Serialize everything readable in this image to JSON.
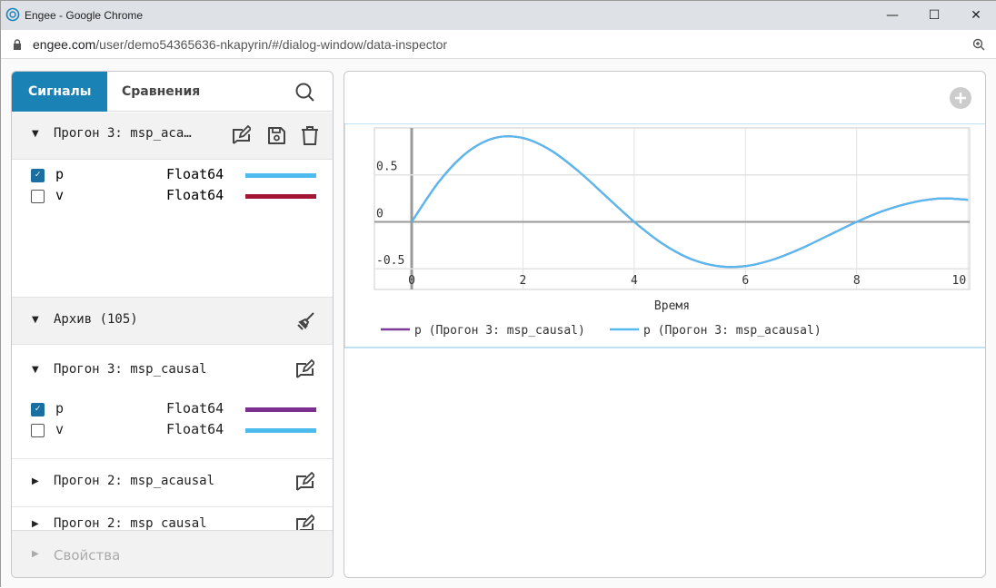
{
  "window": {
    "title": "Engee - Google Chrome",
    "url_host": "engee.com",
    "url_path": "/user/demo54365636-nkapyrin/#/dialog-window/data-inspector"
  },
  "sidebar": {
    "tabs": [
      {
        "label": "Сигналы",
        "active": true
      },
      {
        "label": "Сравнения",
        "active": false
      }
    ],
    "current_run": {
      "label": "Прогон 3: msp_aca…",
      "expanded": true,
      "signals": [
        {
          "name": "p",
          "type": "Float64",
          "checked": true,
          "color": "#4dbbed"
        },
        {
          "name": "v",
          "type": "Float64",
          "checked": false,
          "color": "#a31535"
        }
      ]
    },
    "archive": {
      "label": "Архив (105)",
      "expanded": true
    },
    "archive_runs": [
      {
        "label": "Прогон 3: msp_causal",
        "expanded": true,
        "signals": [
          {
            "name": "p",
            "type": "Float64",
            "checked": true,
            "color": "#7b2f8e"
          },
          {
            "name": "v",
            "type": "Float64",
            "checked": false,
            "color": "#4dbbed"
          }
        ]
      },
      {
        "label": "Прогон 2: msp_acausal",
        "expanded": false
      },
      {
        "label": "Прогон 2: msp_causal",
        "expanded": false
      }
    ],
    "properties": {
      "label": "Свойства"
    }
  },
  "chart_data": {
    "type": "line",
    "xlabel": "Время",
    "ylabel": "",
    "xlim": [
      -0.67,
      10.03
    ],
    "ylim": [
      -0.72,
      1.0
    ],
    "xticks": [
      "0",
      "2",
      "4",
      "6",
      "8",
      "10"
    ],
    "yticks": [
      "-0.5",
      "0",
      "0.5"
    ],
    "grid": true,
    "legend": "bottom",
    "x": [
      0,
      0.5,
      1,
      1.5,
      2,
      2.5,
      3,
      3.5,
      4,
      4.5,
      5,
      5.5,
      6,
      6.5,
      7,
      7.5,
      8,
      8.5,
      9,
      9.5,
      10
    ],
    "series": [
      {
        "name": "p (Прогон 3: msp_causal)",
        "color": "#7b3b96",
        "values": [
          0,
          0.435,
          0.741,
          0.894,
          0.893,
          0.762,
          0.538,
          0.269,
          0,
          -0.229,
          -0.391,
          -0.471,
          -0.471,
          -0.401,
          -0.284,
          -0.142,
          0,
          0.121,
          0.206,
          0.249,
          0.235
        ]
      },
      {
        "name": "p (Прогон 3: msp_acausal)",
        "color": "#56baf0",
        "values": [
          0,
          0.435,
          0.741,
          0.894,
          0.893,
          0.762,
          0.538,
          0.269,
          0,
          -0.229,
          -0.391,
          -0.471,
          -0.471,
          -0.401,
          -0.284,
          -0.142,
          0,
          0.121,
          0.206,
          0.249,
          0.235
        ]
      }
    ]
  }
}
